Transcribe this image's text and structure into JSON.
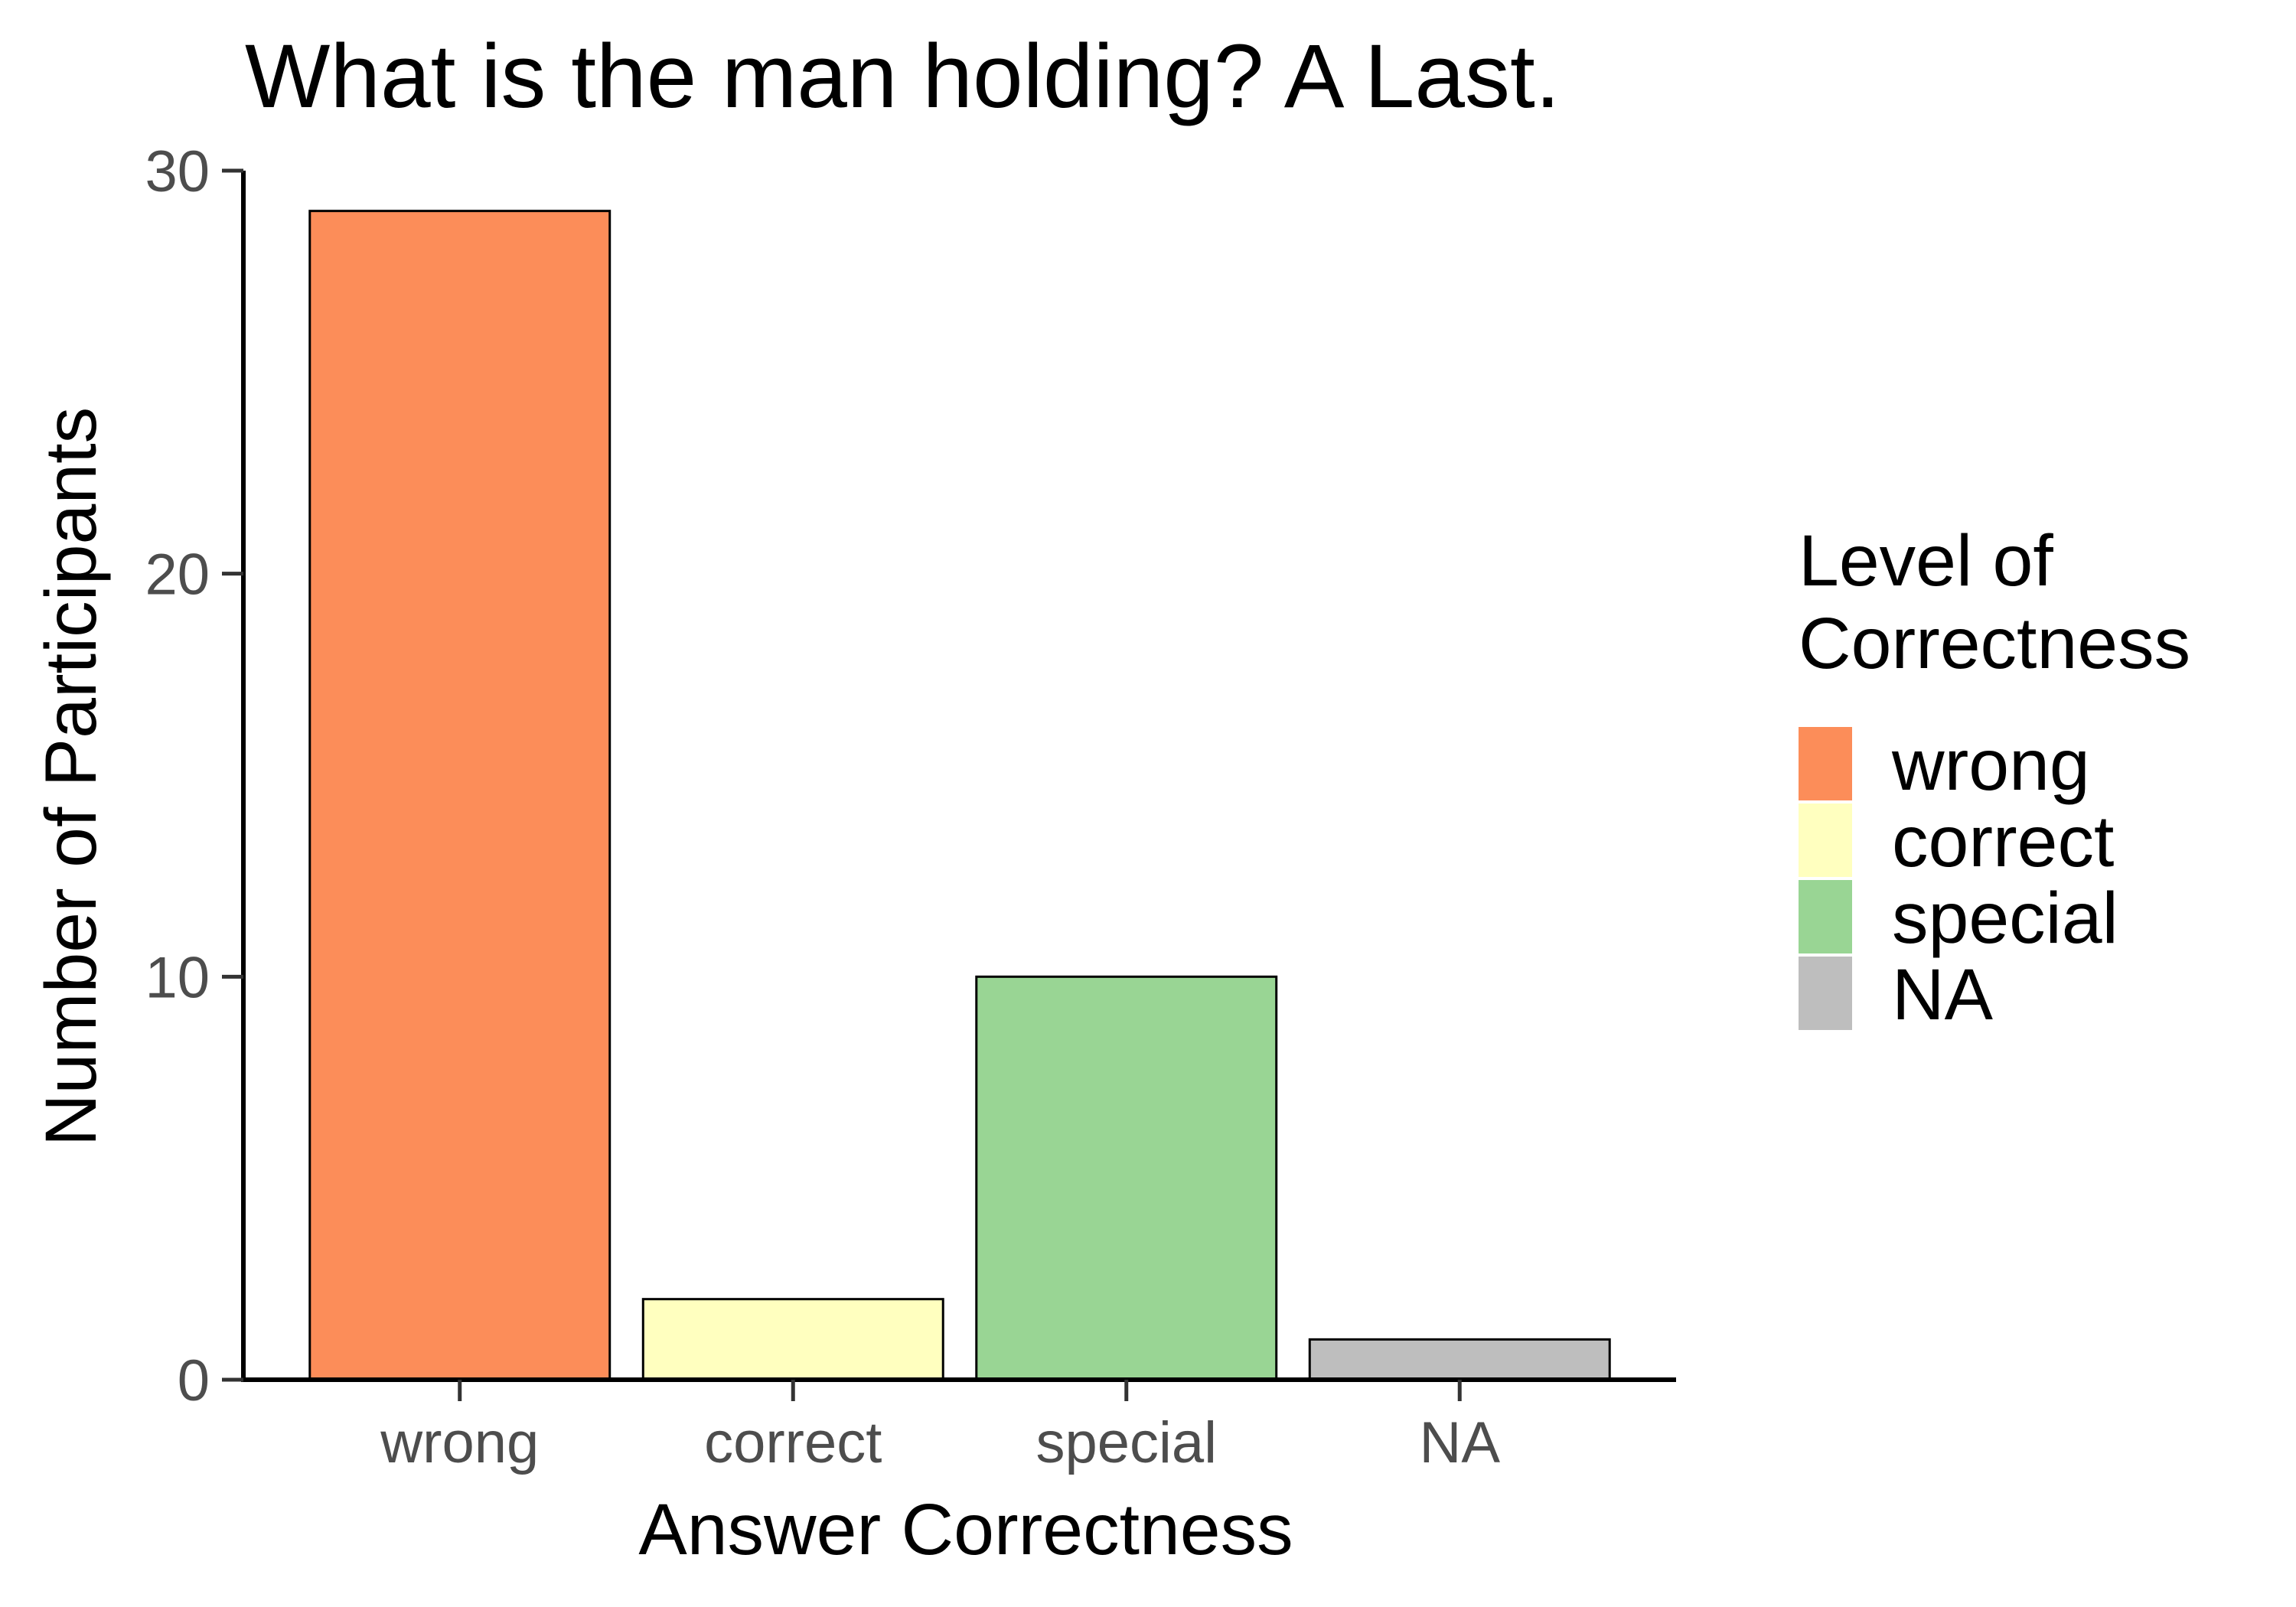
{
  "chart_data": {
    "type": "bar",
    "title": "What is the man holding? A Last.",
    "xlabel": "Answer Correctness",
    "ylabel": "Number of Participants",
    "categories": [
      "wrong",
      "correct",
      "special",
      "NA"
    ],
    "values": [
      29,
      2,
      10,
      1
    ],
    "colors": [
      "#fc8d59",
      "#ffffbf",
      "#99d594",
      "#bebebe"
    ],
    "ylim": [
      0,
      30
    ],
    "yticks": [
      0,
      10,
      20,
      30
    ],
    "grid": false,
    "legend": {
      "title_lines": [
        "Level of",
        "Correctness"
      ],
      "placement": "right",
      "entries": [
        "wrong",
        "correct",
        "special",
        "NA"
      ]
    }
  }
}
